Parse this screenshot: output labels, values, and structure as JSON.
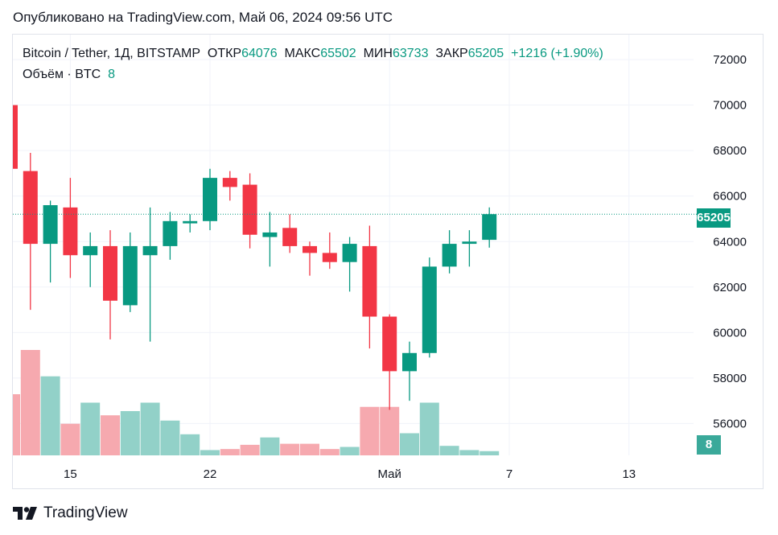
{
  "header": {
    "published": "Опубликовано на TradingView.com, Май 06, 2024 09:56 UTC"
  },
  "legend": {
    "symbol": "Bitcoin / Tether, 1Д, BITSTAMP",
    "open_label": "ОТКР",
    "open_value": "64076",
    "high_label": "МАКС",
    "high_value": "65502",
    "low_label": "МИН",
    "low_value": "63733",
    "close_label": "ЗАКР",
    "close_value": "65205",
    "change": "+1216 (+1.90%)",
    "volume_label": "Объём · BTC",
    "volume_value": "8"
  },
  "price_tag": "65205",
  "volume_tag": "8",
  "brand": {
    "name": "TradingView"
  },
  "colors": {
    "up": "#089981",
    "down": "#f23645",
    "vol_up": "#92d1c8",
    "vol_down": "#f6a9af",
    "grid": "#f0f3fa"
  },
  "chart_data": {
    "type": "candlestick",
    "y_ticks": [
      56000,
      58000,
      60000,
      62000,
      64000,
      66000,
      68000,
      70000,
      72000
    ],
    "x_ticks": [
      {
        "label": "15",
        "index": 3
      },
      {
        "label": "22",
        "index": 10
      },
      {
        "label": "Май",
        "index": 19
      },
      {
        "label": "7",
        "index": 25
      },
      {
        "label": "13",
        "index": 31
      }
    ],
    "ylim": [
      54600,
      73100
    ],
    "candles": [
      {
        "o": 70000,
        "h": 70000,
        "l": 67200,
        "c": 67200
      },
      {
        "o": 67100,
        "h": 67900,
        "l": 61000,
        "c": 63900
      },
      {
        "o": 63900,
        "h": 65800,
        "l": 62200,
        "c": 65600
      },
      {
        "o": 65500,
        "h": 66800,
        "l": 62400,
        "c": 63400
      },
      {
        "o": 63400,
        "h": 64400,
        "l": 62000,
        "c": 63800
      },
      {
        "o": 63800,
        "h": 64500,
        "l": 59700,
        "c": 61400
      },
      {
        "o": 61200,
        "h": 64400,
        "l": 60900,
        "c": 63800
      },
      {
        "o": 63400,
        "h": 65500,
        "l": 59600,
        "c": 63800
      },
      {
        "o": 63800,
        "h": 65300,
        "l": 63200,
        "c": 64900
      },
      {
        "o": 64800,
        "h": 65200,
        "l": 64400,
        "c": 64900
      },
      {
        "o": 64900,
        "h": 67200,
        "l": 64500,
        "c": 66800
      },
      {
        "o": 66800,
        "h": 67100,
        "l": 65800,
        "c": 66400
      },
      {
        "o": 66500,
        "h": 67000,
        "l": 63700,
        "c": 64300
      },
      {
        "o": 64200,
        "h": 65300,
        "l": 62900,
        "c": 64400
      },
      {
        "o": 64600,
        "h": 65200,
        "l": 63500,
        "c": 63800
      },
      {
        "o": 63800,
        "h": 64000,
        "l": 62500,
        "c": 63500
      },
      {
        "o": 63500,
        "h": 64400,
        "l": 62800,
        "c": 63100
      },
      {
        "o": 63100,
        "h": 64200,
        "l": 61800,
        "c": 63900
      },
      {
        "o": 63800,
        "h": 64700,
        "l": 59300,
        "c": 60700
      },
      {
        "o": 60700,
        "h": 60800,
        "l": 56600,
        "c": 58300
      },
      {
        "o": 58300,
        "h": 59600,
        "l": 57000,
        "c": 59100
      },
      {
        "o": 59100,
        "h": 63300,
        "l": 58900,
        "c": 62900
      },
      {
        "o": 62900,
        "h": 64500,
        "l": 62600,
        "c": 63900
      },
      {
        "o": 63900,
        "h": 64500,
        "l": 62900,
        "c": 64000
      },
      {
        "o": 64076,
        "h": 65502,
        "l": 63733,
        "c": 65205
      }
    ],
    "volumes": [
      {
        "v": 0.58,
        "up": false
      },
      {
        "v": 1.0,
        "up": false
      },
      {
        "v": 0.75,
        "up": true
      },
      {
        "v": 0.3,
        "up": false
      },
      {
        "v": 0.5,
        "up": true
      },
      {
        "v": 0.38,
        "up": false
      },
      {
        "v": 0.42,
        "up": true
      },
      {
        "v": 0.5,
        "up": true
      },
      {
        "v": 0.33,
        "up": true
      },
      {
        "v": 0.2,
        "up": true
      },
      {
        "v": 0.05,
        "up": true
      },
      {
        "v": 0.06,
        "up": false
      },
      {
        "v": 0.1,
        "up": false
      },
      {
        "v": 0.17,
        "up": true
      },
      {
        "v": 0.11,
        "up": false
      },
      {
        "v": 0.11,
        "up": false
      },
      {
        "v": 0.06,
        "up": false
      },
      {
        "v": 0.08,
        "up": true
      },
      {
        "v": 0.46,
        "up": false
      },
      {
        "v": 0.46,
        "up": false
      },
      {
        "v": 0.21,
        "up": true
      },
      {
        "v": 0.5,
        "up": true
      },
      {
        "v": 0.09,
        "up": true
      },
      {
        "v": 0.05,
        "up": true
      },
      {
        "v": 0.04,
        "up": true
      }
    ]
  }
}
